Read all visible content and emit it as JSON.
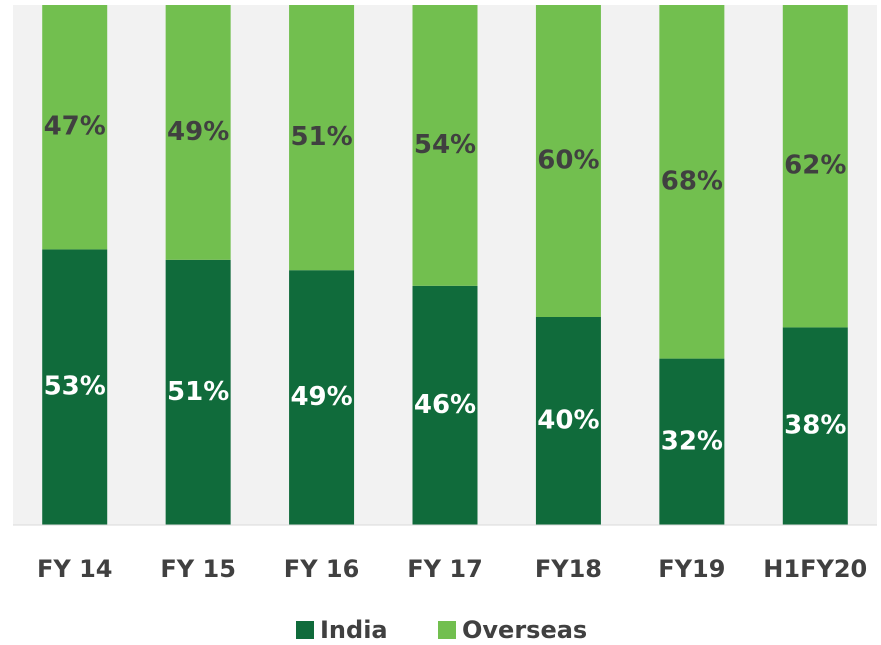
{
  "chart_data": {
    "type": "stacked_bar",
    "categories": [
      "FY 14",
      "FY 15",
      "FY 16",
      "FY 17",
      "FY18",
      "FY19",
      "H1FY20"
    ],
    "series": [
      {
        "name": "India",
        "color": "#106b3b",
        "values": [
          53,
          51,
          49,
          46,
          40,
          32,
          38
        ],
        "value_labels": [
          "53%",
          "51%",
          "49%",
          "46%",
          "40%",
          "32%",
          "38%"
        ]
      },
      {
        "name": "Overseas",
        "color": "#72bf4f",
        "values": [
          47,
          49,
          51,
          54,
          60,
          68,
          62
        ],
        "value_labels": [
          "47%",
          "49%",
          "51%",
          "54%",
          "60%",
          "68%",
          "62%"
        ]
      }
    ],
    "ylim": [
      0,
      100
    ],
    "legend": "bottom"
  }
}
